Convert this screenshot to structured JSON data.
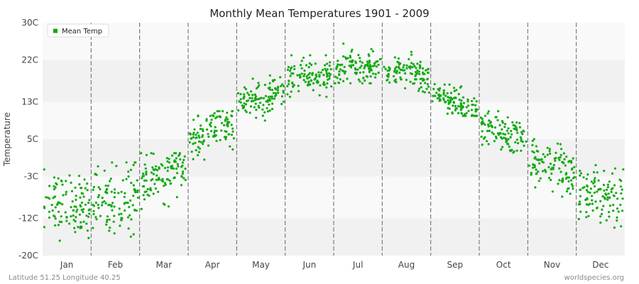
{
  "chart_data": {
    "type": "scatter",
    "title": "Monthly Mean Temperatures 1901 - 2009",
    "xlabel": "",
    "ylabel": "Temperature",
    "y_ticks": [
      "30C",
      "22C",
      "13C",
      "5C",
      "-3C",
      "-12C",
      "-20C"
    ],
    "ylim": [
      -20,
      30
    ],
    "categories": [
      "Jan",
      "Feb",
      "Mar",
      "Apr",
      "May",
      "Jun",
      "Jul",
      "Aug",
      "Sep",
      "Oct",
      "Nov",
      "Dec"
    ],
    "legend": {
      "label": "Mean Temp",
      "position": "top-left"
    },
    "grid": {
      "horizontal_bands": true,
      "vertical_month_dividers": "dashed"
    },
    "series": [
      {
        "name": "Mean Temp",
        "color": "#11aa11",
        "points_per_month": 109,
        "month_distribution": [
          {
            "month": "Jan",
            "mean": -9.0,
            "min": -18.0,
            "max": -1.5
          },
          {
            "month": "Feb",
            "mean": -8.0,
            "min": -19.0,
            "max": 0.0
          },
          {
            "month": "Mar",
            "mean": -3.0,
            "min": -10.0,
            "max": 2.0
          },
          {
            "month": "Apr",
            "mean": 6.5,
            "min": 0.5,
            "max": 11.0
          },
          {
            "month": "May",
            "mean": 14.0,
            "min": 9.0,
            "max": 20.0
          },
          {
            "month": "Jun",
            "mean": 18.5,
            "min": 14.0,
            "max": 23.0
          },
          {
            "month": "Jul",
            "mean": 20.5,
            "min": 17.0,
            "max": 25.5
          },
          {
            "month": "Aug",
            "mean": 19.5,
            "min": 15.0,
            "max": 24.0
          },
          {
            "month": "Sep",
            "mean": 13.0,
            "min": 10.0,
            "max": 18.0
          },
          {
            "month": "Oct",
            "mean": 6.0,
            "min": 0.5,
            "max": 11.0
          },
          {
            "month": "Nov",
            "mean": -1.5,
            "min": -8.0,
            "max": 5.0
          },
          {
            "month": "Dec",
            "mean": -7.0,
            "min": -14.0,
            "max": 0.0
          }
        ]
      }
    ]
  },
  "footer": {
    "left": "Latitude 51.25 Longitude 40.25",
    "right": "worldspecies.org"
  },
  "colors": {
    "band_light": "#f9f9f9",
    "band_dark": "#f1f1f1",
    "divider": "#666666",
    "point": "#11aa11"
  }
}
